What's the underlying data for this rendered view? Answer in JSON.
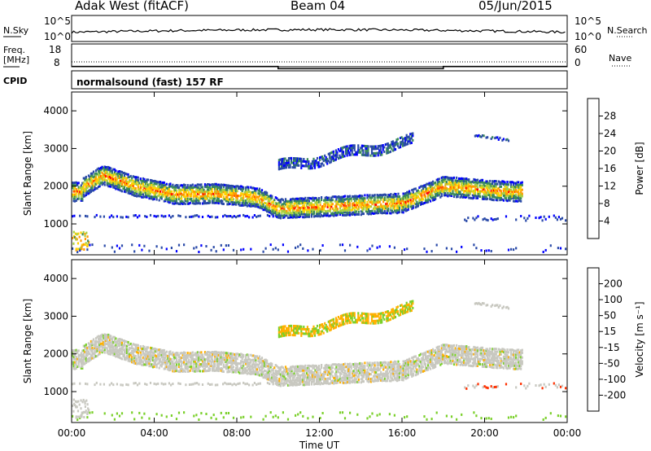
{
  "header": {
    "station": "Adak West (fitACF)",
    "beam": "Beam 04",
    "date": "05/Jun/2015"
  },
  "top_panels": {
    "nsky_label": "N.Sky",
    "nsearch_label": "N.Search",
    "noise_ticks_left": [
      "10^5",
      "10^0"
    ],
    "noise_ticks_right": [
      "10^5",
      "10^0"
    ],
    "freq_label_1": "Freq.",
    "freq_label_2": "[MHz]",
    "freq_ticks": [
      "18",
      "8"
    ],
    "nave_label": "Nave",
    "nave_ticks": [
      "60",
      "0"
    ],
    "cpid_label": "CPID",
    "cpid_text": "normalsound (fast) 157 RF"
  },
  "axes": {
    "ylabel": "Slant Range [km]",
    "yticks": [
      "4000",
      "3000",
      "2000",
      "1000"
    ],
    "xticks": [
      "00:00",
      "04:00",
      "08:00",
      "12:00",
      "16:00",
      "20:00",
      "00:00"
    ],
    "xlabel": "Time UT"
  },
  "power_scale": {
    "label": "Power [dB]",
    "ticks": [
      "28",
      "24",
      "20",
      "16",
      "12",
      "8",
      "4"
    ],
    "colors": [
      "#ff0000",
      "#ff5a00",
      "#ff9a00",
      "#ffd200",
      "#a8d040",
      "#3a8a5a",
      "#2a4aa8",
      "#0000ff"
    ]
  },
  "velocity_scale": {
    "label": "Velocity [m s⁻¹]",
    "ticks": [
      "200",
      "100",
      "50",
      "15",
      "-15",
      "-50",
      "-100",
      "-200"
    ],
    "colors": [
      "#1a2aa0",
      "#2a8a5a",
      "#3a9a3a",
      "#7ad02a",
      "#c8c8c0",
      "#ffb000",
      "#ff7000",
      "#ff3000",
      "#ee0000"
    ]
  },
  "chart_data": {
    "type": "heatmap",
    "x_range_hours": [
      0,
      24
    ],
    "y_range_km": [
      180,
      4500
    ],
    "panels": [
      "Power [dB]",
      "Velocity [m s⁻¹]"
    ],
    "main_echo_band_km": [
      {
        "t": 0.5,
        "r": 1950
      },
      {
        "t": 1.5,
        "r": 2300
      },
      {
        "t": 3.0,
        "r": 2000
      },
      {
        "t": 5.0,
        "r": 1780
      },
      {
        "t": 7.0,
        "r": 1800
      },
      {
        "t": 9.0,
        "r": 1700
      },
      {
        "t": 10.0,
        "r": 1400
      },
      {
        "t": 12.0,
        "r": 1450
      },
      {
        "t": 14.0,
        "r": 1500
      },
      {
        "t": 16.0,
        "r": 1550
      },
      {
        "t": 18.0,
        "r": 2000
      },
      {
        "t": 20.0,
        "r": 1900
      },
      {
        "t": 21.5,
        "r": 1850
      }
    ],
    "frequency_mhz": [
      {
        "t": 0,
        "v": 11
      },
      {
        "t": 10,
        "v": 11
      },
      {
        "t": 10,
        "v": 10
      },
      {
        "t": 18,
        "v": 10
      },
      {
        "t": 18,
        "v": 11
      },
      {
        "t": 24,
        "v": 11
      }
    ]
  }
}
